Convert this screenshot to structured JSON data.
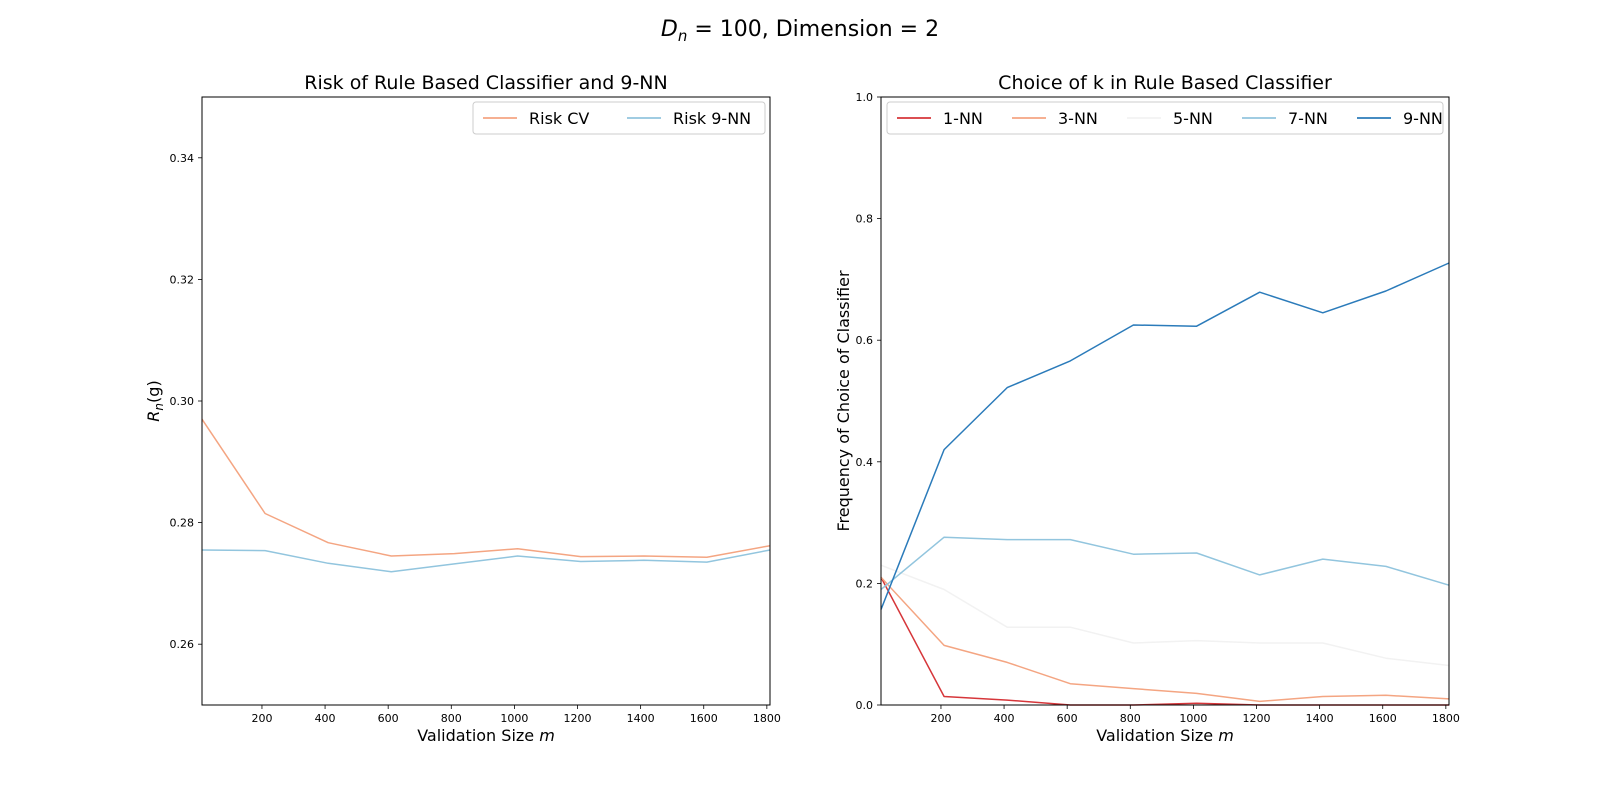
{
  "figure": {
    "suptitle_main": "D",
    "suptitle_sub": "n",
    "suptitle_rest": " = 100, Dimension = 2"
  },
  "chart_data": [
    {
      "type": "line",
      "title": "Risk of Rule Based Classifier and 9-NN",
      "xlabel_text": "Validation Size ",
      "xlabel_var": "m",
      "ylabel_main": "R",
      "ylabel_sub": "n",
      "ylabel_rest": "(g)",
      "xlim": [
        10,
        1810
      ],
      "ylim": [
        0.25,
        0.35
      ],
      "xticks": [
        200,
        400,
        600,
        800,
        1000,
        1200,
        1400,
        1600,
        1800
      ],
      "yticks": [
        0.26,
        0.28,
        0.3,
        0.32,
        0.34
      ],
      "ytick_labels": [
        "0.26",
        "0.28",
        "0.30",
        "0.32",
        "0.34"
      ],
      "grid": false,
      "legend_position": "top-right",
      "legend_cols": 2,
      "x": [
        10,
        210,
        410,
        610,
        810,
        1010,
        1210,
        1410,
        1610,
        1810
      ],
      "series": [
        {
          "name": "Risk CV",
          "color": "#f4a582",
          "values": [
            0.297,
            0.2815,
            0.2767,
            0.2745,
            0.2749,
            0.2757,
            0.2744,
            0.2745,
            0.2743,
            0.2762
          ]
        },
        {
          "name": "Risk 9-NN",
          "color": "#92c5de",
          "values": [
            0.2755,
            0.2754,
            0.2733,
            0.2719,
            0.2732,
            0.2745,
            0.2736,
            0.2738,
            0.2735,
            0.2755
          ]
        }
      ]
    },
    {
      "type": "line",
      "title": "Choice of k in Rule Based Classifier",
      "xlabel_text": "Validation Size ",
      "xlabel_var": "m",
      "ylabel": "Frequency of Choice of Classifier",
      "xlim": [
        10,
        1810
      ],
      "ylim": [
        0.0,
        1.0
      ],
      "xticks": [
        200,
        400,
        600,
        800,
        1000,
        1200,
        1400,
        1600,
        1800
      ],
      "yticks": [
        0.0,
        0.2,
        0.4,
        0.6,
        0.8,
        1.0
      ],
      "ytick_labels": [
        "0.0",
        "0.2",
        "0.4",
        "0.6",
        "0.8",
        "1.0"
      ],
      "grid": false,
      "legend_position": "top",
      "legend_cols": 5,
      "x": [
        10,
        210,
        410,
        610,
        810,
        1010,
        1210,
        1410,
        1610,
        1810
      ],
      "series": [
        {
          "name": "1-NN",
          "color": "#d6363a",
          "values": [
            0.21,
            0.014,
            0.008,
            0.0,
            0.0,
            0.003,
            0.0,
            0.0,
            0.0,
            0.0
          ]
        },
        {
          "name": "3-NN",
          "color": "#f4a582",
          "values": [
            0.21,
            0.098,
            0.07,
            0.035,
            0.027,
            0.019,
            0.006,
            0.014,
            0.016,
            0.01
          ]
        },
        {
          "name": "5-NN",
          "color": "#f2f2f2",
          "values": [
            0.23,
            0.19,
            0.128,
            0.128,
            0.102,
            0.106,
            0.102,
            0.102,
            0.077,
            0.065
          ]
        },
        {
          "name": "7-NN",
          "color": "#92c5de",
          "values": [
            0.19,
            0.276,
            0.272,
            0.272,
            0.248,
            0.25,
            0.214,
            0.24,
            0.228,
            0.197
          ]
        },
        {
          "name": "9-NN",
          "color": "#2b7bba",
          "values": [
            0.157,
            0.42,
            0.522,
            0.566,
            0.625,
            0.623,
            0.679,
            0.645,
            0.681,
            0.727
          ]
        }
      ]
    }
  ]
}
